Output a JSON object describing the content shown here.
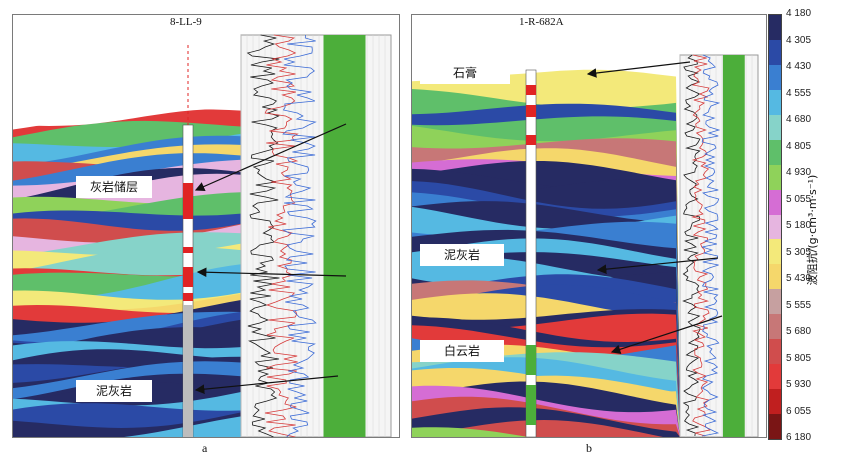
{
  "figure": {
    "panel_a": {
      "well": "8-LL-9",
      "letter": "a",
      "labels": {
        "top": "灰岩储层",
        "bottom": "泥灰岩"
      }
    },
    "panel_b": {
      "well": "1-R-682A",
      "letter": "b",
      "labels": {
        "top": "石膏",
        "middle": "泥灰岩",
        "bottom": "白云岩"
      }
    }
  },
  "chart_data": {
    "type": "heatmap",
    "title": "",
    "colorbar_label": "波阻抗/(g·cm³·m·s⁻¹)",
    "colorbar_ticks": [
      "4 180",
      "4 305",
      "4 430",
      "4 555",
      "4 680",
      "4 805",
      "4 930",
      "5 055",
      "5 180",
      "5 305",
      "5 430",
      "5 555",
      "5 680",
      "5 805",
      "5 930",
      "6 055",
      "6 180"
    ],
    "colorbar_range": [
      4180,
      6180
    ],
    "colorbar_colors": [
      "#262b63",
      "#2b4aa6",
      "#3a7fd1",
      "#55b9e2",
      "#86d3c9",
      "#5fbf6a",
      "#8fd25a",
      "#d56dd4",
      "#e6b5e0",
      "#f3e97a",
      "#f5d76b",
      "#c6a0a0",
      "#c77777",
      "#d04d4d",
      "#e23a3a",
      "#c01f1f",
      "#7a1515"
    ]
  }
}
